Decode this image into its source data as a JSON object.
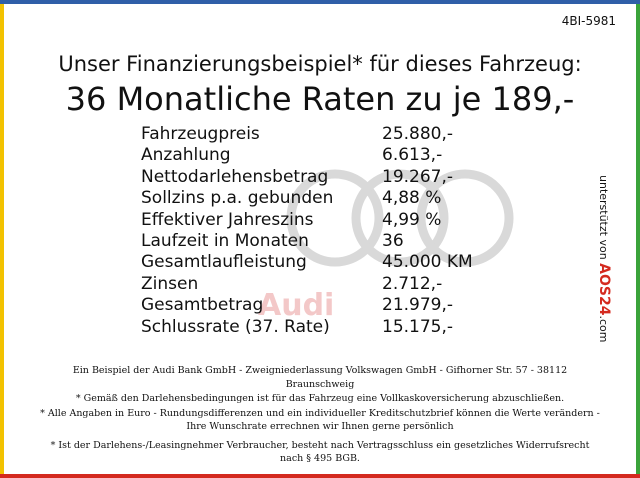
{
  "header": {
    "code": "4BI-5981",
    "title": "Unser Finanzierungsbeispiel* für dieses Fahrzeug:",
    "headline": "36 Monatliche Raten zu je 189,-"
  },
  "table": {
    "rows": [
      [
        "Fahrzeugpreis",
        "25.880,-"
      ],
      [
        "Anzahlung",
        "6.613,-"
      ],
      [
        "Nettodarlehensbetrag",
        "19.267,-"
      ],
      [
        "Sollzins p.a. gebunden",
        "4,88 %"
      ],
      [
        "Effektiver Jahreszins",
        "4,99 %"
      ],
      [
        "Laufzeit in Monaten",
        "36"
      ],
      [
        "Gesamtlaufleistung",
        "45.000 KM"
      ],
      [
        "Zinsen",
        "2.712,-"
      ],
      [
        "Gesamtbetrag",
        "21.979,-"
      ],
      [
        "Schlussrate (37. Rate)",
        "15.175,-"
      ]
    ]
  },
  "watermark": "Audi",
  "sidebar": {
    "text": "unterstützt von",
    "logo": "AOS24",
    "domain": ".com"
  },
  "footer": {
    "notes": [
      "Ein Beispiel der Audi Bank GmbH - Zweigniederlassung Volkswagen GmbH - Gifhorner Str. 57 - 38112 Braunschweig",
      "* Gemäß den Darlehensbedingungen ist für das Fahrzeug eine Vollkaskoversicherung abzuschließen.",
      "* Alle Angaben in Euro - Rundungsdifferenzen und ein individueller Kreditschutzbrief können die Werte verändern - Ihre Wunschrate errechnen wir Ihnen gerne persönlich",
      "* Ist der Darlehens-/Leasingnehmer Verbraucher, besteht nach Vertragsschluss ein gesetzliches Widerrufsrecht nach § 495 BGB."
    ]
  }
}
